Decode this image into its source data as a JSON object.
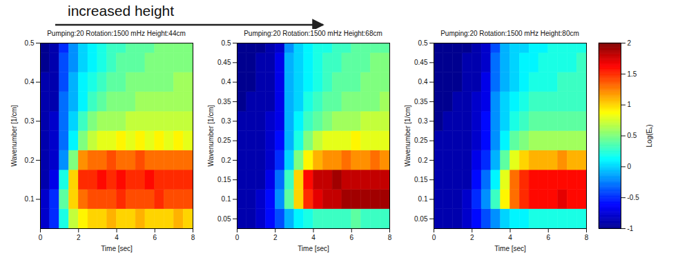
{
  "chart_data": {
    "type": "heatmap",
    "annotation": "increased height",
    "xlabel": "Time [sec]",
    "ylabel": "Wavenumber [1/cm]",
    "xlim": [
      0,
      8
    ],
    "xticks": [
      0,
      2,
      4,
      6,
      8
    ],
    "colorbar": {
      "label": "Log(Eₖ)",
      "range": [
        -1,
        2
      ],
      "ticks": [
        -1,
        -0.5,
        0,
        0.5,
        1,
        1.5,
        2
      ]
    },
    "panels": [
      {
        "title": "Pumping:20 Rotation:1500 mHz Height:44cm",
        "ylim": [
          0.025,
          0.5
        ],
        "yticks": [
          0.1,
          0.2,
          0.3,
          0.4,
          0.5
        ],
        "x_edges": [
          0,
          0.5,
          1,
          1.5,
          2,
          2.5,
          3,
          3.5,
          4,
          4.5,
          5,
          5.5,
          6,
          6.5,
          7,
          7.5,
          8
        ],
        "y_edges": [
          0.025,
          0.075,
          0.125,
          0.175,
          0.225,
          0.275,
          0.325,
          0.375,
          0.425,
          0.475,
          0.5
        ],
        "values": [
          [
            -0.8,
            -0.5,
            0.2,
            0.7,
            0.9,
            1.0,
            1.0,
            1.1,
            1.0,
            1.0,
            1.1,
            1.0,
            1.0,
            1.0,
            1.1,
            1.0
          ],
          [
            -0.8,
            -0.5,
            0.4,
            1.0,
            1.3,
            1.4,
            1.4,
            1.4,
            1.5,
            1.4,
            1.4,
            1.4,
            1.5,
            1.4,
            1.4,
            1.4
          ],
          [
            -0.9,
            -0.7,
            0.2,
            1.0,
            1.5,
            1.5,
            1.6,
            1.5,
            1.6,
            1.5,
            1.5,
            1.6,
            1.5,
            1.5,
            1.5,
            1.5
          ],
          [
            -0.9,
            -0.8,
            -0.2,
            0.5,
            1.2,
            1.3,
            1.3,
            1.4,
            1.3,
            1.3,
            1.4,
            1.3,
            1.3,
            1.3,
            1.3,
            1.3
          ],
          [
            -0.9,
            -0.8,
            -0.3,
            0.1,
            0.5,
            0.7,
            0.8,
            0.8,
            0.9,
            0.8,
            0.9,
            0.8,
            0.9,
            0.8,
            0.9,
            0.8
          ],
          [
            -0.9,
            -0.8,
            -0.3,
            0.0,
            0.3,
            0.5,
            0.6,
            0.6,
            0.6,
            0.7,
            0.7,
            0.7,
            0.7,
            0.7,
            0.7,
            0.7
          ],
          [
            -0.9,
            -0.9,
            -0.3,
            -0.1,
            0.1,
            0.3,
            0.4,
            0.5,
            0.5,
            0.5,
            0.6,
            0.6,
            0.6,
            0.6,
            0.6,
            0.6
          ],
          [
            -0.9,
            -0.9,
            -0.4,
            -0.1,
            0.1,
            0.2,
            0.3,
            0.4,
            0.4,
            0.5,
            0.5,
            0.5,
            0.5,
            0.5,
            0.6,
            0.6
          ],
          [
            -1.0,
            -0.9,
            -0.4,
            -0.2,
            0.0,
            0.1,
            0.2,
            0.3,
            0.4,
            0.4,
            0.4,
            0.5,
            0.5,
            0.5,
            0.5,
            0.5
          ],
          [
            -1.0,
            -0.9,
            -0.5,
            -0.2,
            0.0,
            0.1,
            0.2,
            0.3,
            0.3,
            0.4,
            0.4,
            0.4,
            0.5,
            0.5,
            0.5,
            0.5
          ]
        ]
      },
      {
        "title": "Pumping:20 Rotation:1500 mHz Height:68cm",
        "ylim": [
          0.025,
          0.5
        ],
        "yticks": [
          0.05,
          0.1,
          0.15,
          0.2,
          0.25,
          0.3,
          0.35,
          0.4,
          0.45,
          0.5
        ],
        "x_edges": [
          0,
          0.5,
          1,
          1.5,
          2,
          2.5,
          3,
          3.5,
          4,
          4.5,
          5,
          5.5,
          6,
          6.5,
          7,
          7.5,
          8
        ],
        "y_edges": [
          0.025,
          0.075,
          0.125,
          0.175,
          0.225,
          0.275,
          0.325,
          0.375,
          0.425,
          0.475,
          0.5
        ],
        "values": [
          [
            -0.9,
            -0.9,
            -0.8,
            -0.6,
            -0.4,
            -0.1,
            0.1,
            0.2,
            0.3,
            0.3,
            0.3,
            0.3,
            0.4,
            0.3,
            0.3,
            0.3
          ],
          [
            -0.9,
            -0.9,
            -0.8,
            -0.6,
            -0.2,
            0.4,
            1.0,
            1.5,
            1.7,
            1.8,
            1.8,
            1.9,
            1.9,
            1.9,
            1.9,
            1.9
          ],
          [
            -0.9,
            -0.9,
            -0.9,
            -0.7,
            -0.3,
            0.3,
            1.0,
            1.6,
            1.8,
            1.8,
            1.9,
            1.8,
            1.8,
            1.8,
            1.8,
            1.8
          ],
          [
            -0.9,
            -0.9,
            -0.9,
            -0.8,
            -0.5,
            0.0,
            0.5,
            0.9,
            1.1,
            1.2,
            1.2,
            1.3,
            1.2,
            1.2,
            1.3,
            1.2
          ],
          [
            -0.9,
            -0.9,
            -0.9,
            -0.8,
            -0.6,
            -0.1,
            0.2,
            0.5,
            0.7,
            0.8,
            0.8,
            0.8,
            0.9,
            0.8,
            0.8,
            0.8
          ],
          [
            -0.9,
            -0.9,
            -0.9,
            -0.8,
            -0.7,
            -0.1,
            0.1,
            0.3,
            0.4,
            0.5,
            0.6,
            0.6,
            0.6,
            0.7,
            0.7,
            0.7
          ],
          [
            -1.0,
            -0.9,
            -0.9,
            -0.9,
            -0.7,
            -0.1,
            0.0,
            0.2,
            0.3,
            0.4,
            0.4,
            0.5,
            0.5,
            0.5,
            0.5,
            0.6
          ],
          [
            -1.0,
            -1.0,
            -0.9,
            -0.9,
            -0.7,
            -0.1,
            0.0,
            0.1,
            0.2,
            0.3,
            0.4,
            0.4,
            0.4,
            0.5,
            0.5,
            0.5
          ],
          [
            -1.0,
            -1.0,
            -0.9,
            -0.9,
            -0.7,
            -0.1,
            0.0,
            0.1,
            0.2,
            0.3,
            0.3,
            0.4,
            0.4,
            0.4,
            0.5,
            0.5
          ],
          [
            -1.0,
            -1.0,
            -1.0,
            -0.9,
            -0.8,
            -0.2,
            0.0,
            0.1,
            0.2,
            0.2,
            0.3,
            0.3,
            0.4,
            0.4,
            0.4,
            0.4
          ]
        ]
      },
      {
        "title": "Pumping:20 Rotation:1500 mHz Height:80cm",
        "ylim": [
          0.025,
          0.5
        ],
        "yticks": [
          0.05,
          0.1,
          0.15,
          0.2,
          0.25,
          0.3,
          0.35,
          0.4,
          0.45,
          0.5
        ],
        "x_edges": [
          0,
          0.5,
          1,
          1.5,
          2,
          2.5,
          3,
          3.5,
          4,
          4.5,
          5,
          5.5,
          6,
          6.5,
          7,
          7.5,
          8
        ],
        "y_edges": [
          0.025,
          0.075,
          0.125,
          0.175,
          0.225,
          0.275,
          0.325,
          0.375,
          0.425,
          0.475,
          0.5
        ],
        "values": [
          [
            -0.9,
            -0.9,
            -0.9,
            -0.8,
            -0.6,
            -0.4,
            -0.2,
            0.0,
            0.1,
            0.1,
            0.2,
            0.2,
            0.2,
            0.2,
            0.2,
            0.2
          ],
          [
            -0.9,
            -0.9,
            -0.9,
            -0.8,
            -0.5,
            -0.2,
            0.3,
            0.9,
            1.3,
            1.5,
            1.6,
            1.6,
            1.6,
            1.7,
            1.6,
            1.6
          ],
          [
            -0.9,
            -0.9,
            -0.9,
            -0.9,
            -0.6,
            -0.3,
            0.1,
            0.8,
            1.3,
            1.5,
            1.6,
            1.6,
            1.6,
            1.6,
            1.6,
            1.6
          ],
          [
            -0.9,
            -0.9,
            -0.9,
            -0.9,
            -0.7,
            -0.5,
            -0.1,
            0.4,
            0.8,
            1.0,
            1.1,
            1.1,
            1.1,
            1.2,
            1.1,
            1.1
          ],
          [
            -0.9,
            -0.9,
            -0.9,
            -0.9,
            -0.8,
            -0.6,
            -0.2,
            0.1,
            0.4,
            0.5,
            0.6,
            0.6,
            0.6,
            0.6,
            0.6,
            0.6
          ],
          [
            -1.0,
            -0.9,
            -0.9,
            -0.9,
            -0.8,
            -0.6,
            -0.2,
            0.0,
            0.2,
            0.3,
            0.4,
            0.4,
            0.4,
            0.4,
            0.4,
            0.4
          ],
          [
            -1.0,
            -1.0,
            -0.9,
            -0.9,
            -0.8,
            -0.7,
            -0.2,
            0.0,
            0.1,
            0.2,
            0.3,
            0.3,
            0.3,
            0.3,
            0.3,
            0.3
          ],
          [
            -1.0,
            -1.0,
            -1.0,
            -0.9,
            -0.9,
            -0.7,
            -0.3,
            -0.1,
            0.0,
            0.1,
            0.2,
            0.2,
            0.2,
            0.3,
            0.3,
            0.3
          ],
          [
            -1.0,
            -1.0,
            -1.0,
            -0.9,
            -0.9,
            -0.8,
            -0.3,
            -0.1,
            0.0,
            0.1,
            0.1,
            0.2,
            0.2,
            0.2,
            0.2,
            0.3
          ],
          [
            -1.0,
            -1.0,
            -1.0,
            -1.0,
            -0.9,
            -0.8,
            -0.4,
            -0.1,
            0.0,
            0.0,
            0.1,
            0.1,
            0.2,
            0.2,
            0.2,
            0.2
          ]
        ]
      }
    ]
  }
}
